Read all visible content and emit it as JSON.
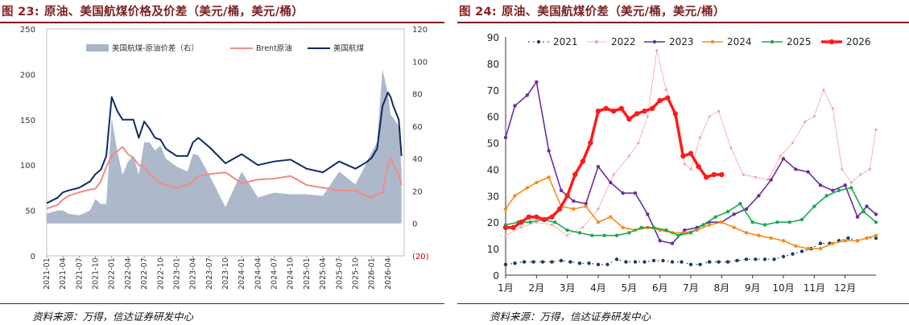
{
  "left": {
    "fig_label": "图 23:",
    "title": "原油、美国航煤价格及价差（美元/桶，美元/桶）",
    "source": "资料来源：万得，信达证券研发中心",
    "chart_data": {
      "type": "area+line",
      "ylim_left": [
        0,
        250
      ],
      "yticks_left": [
        0,
        50,
        100,
        150,
        200,
        250
      ],
      "ylim_right": [
        -20,
        120
      ],
      "yticks_right": [
        -20,
        0,
        20,
        40,
        60,
        80,
        100,
        120
      ],
      "yticks_right_labels": [
        "(20)",
        "0",
        "20",
        "40",
        "60",
        "80",
        "100",
        "120"
      ],
      "xticks": [
        "2021-01",
        "2021-04",
        "2021-07",
        "2021-10",
        "2022-01",
        "2022-04",
        "2022-07",
        "2022-10",
        "2023-01",
        "2023-04",
        "2023-07",
        "2023-10",
        "2024-01",
        "2024-04",
        "2024-07",
        "2024-10",
        "2025-01",
        "2025-04",
        "2025-07",
        "2025-10",
        "2026-01",
        "2026-04"
      ],
      "legend": [
        "美国航煤-原油价差（右）",
        "Brent原油",
        "美国航煤"
      ],
      "colors": {
        "spread": "#a9b4c8",
        "brent": "#f08c84",
        "jet": "#0f2a63"
      },
      "x_months": [
        0,
        2,
        3,
        4,
        6,
        8,
        9,
        10,
        11,
        12,
        13,
        14,
        15,
        16,
        17,
        18,
        19,
        20,
        21,
        22,
        24,
        26,
        27,
        28,
        30,
        33,
        36,
        39,
        42,
        45,
        48,
        51,
        54,
        57,
        59,
        60,
        61,
        62,
        63,
        63.5,
        64,
        65,
        65.5
      ],
      "series": [
        {
          "name": "美国航煤",
          "values": [
            58,
            64,
            70,
            72,
            75,
            82,
            90,
            95,
            110,
            175,
            160,
            150,
            150,
            150,
            130,
            148,
            140,
            130,
            128,
            118,
            110,
            110,
            125,
            130,
            120,
            102,
            112,
            100,
            104,
            106,
            96,
            92,
            104,
            96,
            103,
            108,
            118,
            165,
            180,
            175,
            165,
            150,
            110
          ]
        },
        {
          "name": "Brent原油",
          "values": [
            52,
            56,
            62,
            66,
            70,
            73,
            74,
            82,
            98,
            110,
            115,
            120,
            112,
            108,
            100,
            98,
            90,
            85,
            80,
            78,
            75,
            78,
            82,
            88,
            90,
            92,
            80,
            84,
            85,
            88,
            78,
            75,
            72,
            72,
            66,
            64,
            68,
            70,
            100,
            108,
            100,
            90,
            78
          ]
        },
        {
          "name": "美国航煤-原油价差（右）",
          "values": [
            6,
            8,
            8,
            6,
            5,
            8,
            15,
            12,
            12,
            65,
            45,
            30,
            38,
            42,
            30,
            50,
            50,
            45,
            48,
            40,
            35,
            32,
            43,
            42,
            30,
            10,
            32,
            16,
            19,
            18,
            18,
            17,
            32,
            24,
            37,
            44,
            50,
            95,
            80,
            67,
            65,
            60,
            32
          ]
        }
      ]
    }
  },
  "right": {
    "fig_label": "图 24:",
    "title": "原油、美国航煤价差（美元/桶，美元/桶）",
    "source": "资料来源：万得，信达证券研发中心",
    "chart_data": {
      "type": "line",
      "ylim": [
        0,
        90
      ],
      "yticks": [
        0,
        10,
        20,
        30,
        40,
        50,
        60,
        70,
        80,
        90
      ],
      "xticks": [
        "1月",
        "2月",
        "3月",
        "4月",
        "5月",
        "6月",
        "7月",
        "8月",
        "9月",
        "10月",
        "11月",
        "12月"
      ],
      "legend": [
        "2021",
        "2022",
        "2023",
        "2024",
        "2025",
        "2026"
      ],
      "series": [
        {
          "name": "2021",
          "color": "#1f3b66",
          "style": "dotted",
          "x": [
            0,
            0.3,
            0.6,
            0.9,
            1.2,
            1.5,
            1.8,
            2.1,
            2.4,
            2.7,
            3,
            3.3,
            3.6,
            3.9,
            4.2,
            4.5,
            4.8,
            5.1,
            5.4,
            5.7,
            6,
            6.3,
            6.6,
            6.9,
            7.2,
            7.5,
            7.8,
            8.1,
            8.4,
            8.7,
            9,
            9.3,
            9.6,
            9.9,
            10.2,
            10.5,
            10.8,
            11.1,
            11.4,
            11.7,
            12
          ],
          "values": [
            4,
            4.5,
            5,
            5,
            5,
            5,
            5.5,
            5,
            4.5,
            4.5,
            4,
            4,
            6,
            5,
            5,
            5,
            5.5,
            5.5,
            5,
            5,
            4,
            4,
            5,
            5,
            5,
            5.5,
            6,
            6,
            6,
            6,
            7,
            8,
            9,
            10,
            12,
            12,
            13,
            14,
            13,
            14,
            14
          ]
        },
        {
          "name": "2022",
          "color": "#f4a6a6",
          "style": "thin",
          "x": [
            0,
            0.5,
            1,
            1.5,
            2,
            2.5,
            3,
            3.5,
            4,
            4.3,
            4.6,
            4.9,
            5.2,
            5.5,
            5.8,
            6,
            6.3,
            6.6,
            6.9,
            7.3,
            7.7,
            8.1,
            8.5,
            8.9,
            9.3,
            9.7,
            10,
            10.3,
            10.6,
            10.9,
            11.2,
            11.5,
            11.8,
            12
          ],
          "values": [
            15,
            18,
            20,
            19,
            15,
            18,
            25,
            38,
            45,
            50,
            60,
            85,
            70,
            60,
            42,
            40,
            52,
            60,
            62,
            48,
            38,
            37,
            36,
            45,
            50,
            58,
            60,
            70,
            63,
            40,
            35,
            38,
            40,
            55
          ]
        },
        {
          "name": "2023",
          "color": "#6a2ea0",
          "style": "solid",
          "x": [
            0,
            0.3,
            0.7,
            1,
            1.4,
            1.8,
            2.2,
            2.6,
            3,
            3.4,
            3.8,
            4.2,
            4.6,
            5,
            5.4,
            5.8,
            6.2,
            6.6,
            7,
            7.4,
            7.8,
            8.2,
            8.6,
            9,
            9.4,
            9.8,
            10.2,
            10.6,
            11,
            11.4,
            11.7,
            12
          ],
          "values": [
            52,
            64,
            68,
            73,
            47,
            32,
            28,
            27,
            41,
            35,
            31,
            31,
            23,
            13,
            12,
            17,
            18,
            20,
            20,
            23,
            25,
            30,
            36,
            44,
            40,
            39,
            34,
            32,
            34,
            22,
            26,
            23
          ]
        },
        {
          "name": "2024",
          "color": "#f58b1f",
          "style": "solid",
          "x": [
            0,
            0.3,
            0.7,
            1,
            1.4,
            1.8,
            2.2,
            2.6,
            3,
            3.4,
            3.8,
            4.2,
            4.6,
            5,
            5.4,
            5.8,
            6.2,
            6.6,
            7,
            7.4,
            7.8,
            8.2,
            8.6,
            9,
            9.4,
            9.8,
            10.2,
            10.6,
            11,
            11.4,
            11.7,
            12
          ],
          "values": [
            25,
            30,
            33,
            35,
            37,
            26,
            25,
            26,
            20,
            22,
            18,
            17,
            18,
            17,
            16,
            16,
            17,
            19,
            20,
            18,
            16,
            15,
            14,
            13,
            11,
            10,
            10,
            12,
            13,
            13,
            14,
            15
          ]
        },
        {
          "name": "2025",
          "color": "#1aaa4c",
          "style": "solid",
          "x": [
            0,
            0.4,
            0.8,
            1.2,
            1.6,
            2,
            2.4,
            2.8,
            3.2,
            3.6,
            4,
            4.4,
            4.8,
            5.2,
            5.6,
            6,
            6.4,
            6.8,
            7.2,
            7.6,
            8,
            8.4,
            8.8,
            9.2,
            9.6,
            10,
            10.4,
            10.8,
            11.2,
            11.6,
            12
          ],
          "values": [
            19,
            20,
            20,
            21,
            20,
            17,
            16,
            15,
            15,
            15,
            16,
            18,
            18,
            17,
            15,
            16,
            19,
            22,
            24,
            27,
            20,
            19,
            20,
            20,
            21,
            26,
            30,
            32,
            33,
            24,
            20
          ]
        },
        {
          "name": "2026",
          "color": "#ff1a1a",
          "style": "bold",
          "x": [
            0,
            0.25,
            0.5,
            0.75,
            1,
            1.25,
            1.5,
            1.75,
            2,
            2.25,
            2.5,
            2.75,
            3,
            3.25,
            3.5,
            3.75,
            4,
            4.25,
            4.5,
            4.75,
            5,
            5.25,
            5.5,
            5.75,
            6,
            6.25,
            6.5,
            6.75,
            7
          ],
          "values": [
            18,
            18,
            20,
            22,
            22,
            21,
            22,
            25,
            30,
            38,
            43,
            50,
            62,
            63,
            62,
            63,
            59,
            61,
            62,
            63,
            66,
            67,
            61,
            45,
            46,
            41,
            37,
            38,
            38
          ]
        }
      ]
    }
  }
}
